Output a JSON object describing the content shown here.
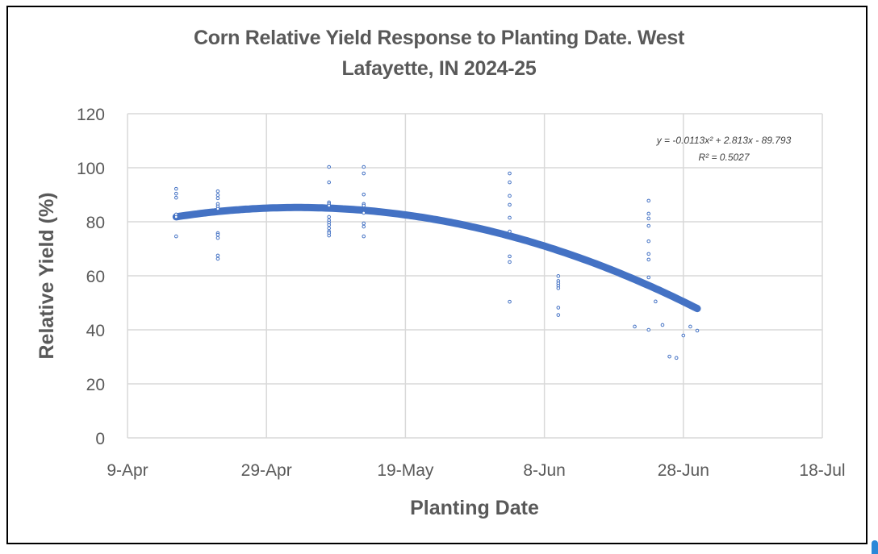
{
  "chart_data": {
    "type": "scatter",
    "title": "Corn Relative Yield Response to Planting Date. West Lafayette, IN 2024-25",
    "title_lines": [
      "Corn Relative Yield Response to Planting Date. West",
      "Lafayette, IN 2024-25"
    ],
    "xlabel": "Planting Date",
    "ylabel": "Relative Yield (%)",
    "x_tick_labels": [
      "9-Apr",
      "29-Apr",
      "19-May",
      "8-Jun",
      "28-Jun",
      "18-Jul"
    ],
    "x_ticks_day_of_year": [
      100,
      120,
      140,
      160,
      180,
      200
    ],
    "xlim_day_of_year": [
      100,
      200
    ],
    "y_ticks": [
      0,
      20,
      40,
      60,
      80,
      100,
      120
    ],
    "ylim": [
      0,
      120
    ],
    "grid": true,
    "legend": "none",
    "series": [
      {
        "name": "Relative Yield",
        "marker": "hollow-circle",
        "color": "#4472C4",
        "points": [
          {
            "date": "16-Apr",
            "doy": 107,
            "y": 92.2
          },
          {
            "date": "16-Apr",
            "doy": 107,
            "y": 90.4
          },
          {
            "date": "16-Apr",
            "doy": 107,
            "y": 88.9
          },
          {
            "date": "16-Apr",
            "doy": 107,
            "y": 82.7
          },
          {
            "date": "16-Apr",
            "doy": 107,
            "y": 81.8
          },
          {
            "date": "16-Apr",
            "doy": 107,
            "y": 74.6
          },
          {
            "date": "22-Apr",
            "doy": 113,
            "y": 91.3
          },
          {
            "date": "22-Apr",
            "doy": 113,
            "y": 89.9
          },
          {
            "date": "22-Apr",
            "doy": 113,
            "y": 88.7
          },
          {
            "date": "22-Apr",
            "doy": 113,
            "y": 86.6
          },
          {
            "date": "22-Apr",
            "doy": 113,
            "y": 85.7
          },
          {
            "date": "22-Apr",
            "doy": 113,
            "y": 84.8
          },
          {
            "date": "22-Apr",
            "doy": 113,
            "y": 75.8
          },
          {
            "date": "22-Apr",
            "doy": 113,
            "y": 75.2
          },
          {
            "date": "22-Apr",
            "doy": 113,
            "y": 74.0
          },
          {
            "date": "22-Apr",
            "doy": 113,
            "y": 67.5
          },
          {
            "date": "22-Apr",
            "doy": 113,
            "y": 66.3
          },
          {
            "date": "8-May",
            "doy": 129,
            "y": 100.3
          },
          {
            "date": "8-May",
            "doy": 129,
            "y": 94.6
          },
          {
            "date": "8-May",
            "doy": 129,
            "y": 87.2
          },
          {
            "date": "8-May",
            "doy": 129,
            "y": 86.6
          },
          {
            "date": "8-May",
            "doy": 129,
            "y": 86.0
          },
          {
            "date": "8-May",
            "doy": 129,
            "y": 81.8
          },
          {
            "date": "8-May",
            "doy": 129,
            "y": 80.6
          },
          {
            "date": "8-May",
            "doy": 129,
            "y": 79.7
          },
          {
            "date": "8-May",
            "doy": 129,
            "y": 78.8
          },
          {
            "date": "8-May",
            "doy": 129,
            "y": 77.6
          },
          {
            "date": "8-May",
            "doy": 129,
            "y": 76.4
          },
          {
            "date": "8-May",
            "doy": 129,
            "y": 75.8
          },
          {
            "date": "8-May",
            "doy": 129,
            "y": 74.9
          },
          {
            "date": "13-May",
            "doy": 134,
            "y": 100.3
          },
          {
            "date": "13-May",
            "doy": 134,
            "y": 97.9
          },
          {
            "date": "13-May",
            "doy": 134,
            "y": 90.1
          },
          {
            "date": "13-May",
            "doy": 134,
            "y": 86.6
          },
          {
            "date": "13-May",
            "doy": 134,
            "y": 86.0
          },
          {
            "date": "13-May",
            "doy": 134,
            "y": 83.3
          },
          {
            "date": "13-May",
            "doy": 134,
            "y": 79.4
          },
          {
            "date": "13-May",
            "doy": 134,
            "y": 78.2
          },
          {
            "date": "13-May",
            "doy": 134,
            "y": 74.6
          },
          {
            "date": "3-Jun",
            "doy": 155,
            "y": 97.9
          },
          {
            "date": "3-Jun",
            "doy": 155,
            "y": 94.6
          },
          {
            "date": "3-Jun",
            "doy": 155,
            "y": 89.6
          },
          {
            "date": "3-Jun",
            "doy": 155,
            "y": 86.3
          },
          {
            "date": "3-Jun",
            "doy": 155,
            "y": 81.5
          },
          {
            "date": "3-Jun",
            "doy": 155,
            "y": 76.4
          },
          {
            "date": "3-Jun",
            "doy": 155,
            "y": 67.2
          },
          {
            "date": "3-Jun",
            "doy": 155,
            "y": 65.1
          },
          {
            "date": "3-Jun",
            "doy": 155,
            "y": 50.4
          },
          {
            "date": "10-Jun",
            "doy": 162,
            "y": 59.9
          },
          {
            "date": "10-Jun",
            "doy": 162,
            "y": 58.1
          },
          {
            "date": "10-Jun",
            "doy": 162,
            "y": 57.2
          },
          {
            "date": "10-Jun",
            "doy": 162,
            "y": 56.3
          },
          {
            "date": "10-Jun",
            "doy": 162,
            "y": 55.4
          },
          {
            "date": "10-Jun",
            "doy": 162,
            "y": 48.2
          },
          {
            "date": "10-Jun",
            "doy": 162,
            "y": 45.5
          },
          {
            "date": "21-Jun",
            "doy": 173,
            "y": 41.2
          },
          {
            "date": "23-Jun",
            "doy": 175,
            "y": 87.8
          },
          {
            "date": "23-Jun",
            "doy": 175,
            "y": 83.0
          },
          {
            "date": "23-Jun",
            "doy": 175,
            "y": 81.2
          },
          {
            "date": "23-Jun",
            "doy": 175,
            "y": 78.5
          },
          {
            "date": "23-Jun",
            "doy": 175,
            "y": 72.8
          },
          {
            "date": "23-Jun",
            "doy": 175,
            "y": 68.1
          },
          {
            "date": "23-Jun",
            "doy": 175,
            "y": 66.0
          },
          {
            "date": "23-Jun",
            "doy": 175,
            "y": 59.4
          },
          {
            "date": "23-Jun",
            "doy": 175,
            "y": 40.0
          },
          {
            "date": "24-Jun",
            "doy": 176,
            "y": 50.5
          },
          {
            "date": "25-Jun",
            "doy": 177,
            "y": 41.8
          },
          {
            "date": "26-Jun",
            "doy": 178,
            "y": 30.1
          },
          {
            "date": "27-Jun",
            "doy": 179,
            "y": 29.6
          },
          {
            "date": "28-Jun",
            "doy": 180,
            "y": 37.9
          },
          {
            "date": "29-Jun",
            "doy": 181,
            "y": 41.2
          },
          {
            "date": "30-Jun",
            "doy": 182,
            "y": 39.7
          }
        ]
      }
    ],
    "trendline": {
      "type": "polynomial-2",
      "color": "#4472C4",
      "equation": "y = -0.0113x² + 2.813x - 89.793",
      "r_squared_label": "R² = 0.5027",
      "coefficients": {
        "a": -0.0113,
        "b": 2.813,
        "c": -89.793
      },
      "x_range_day_of_year": [
        107,
        182
      ]
    }
  }
}
